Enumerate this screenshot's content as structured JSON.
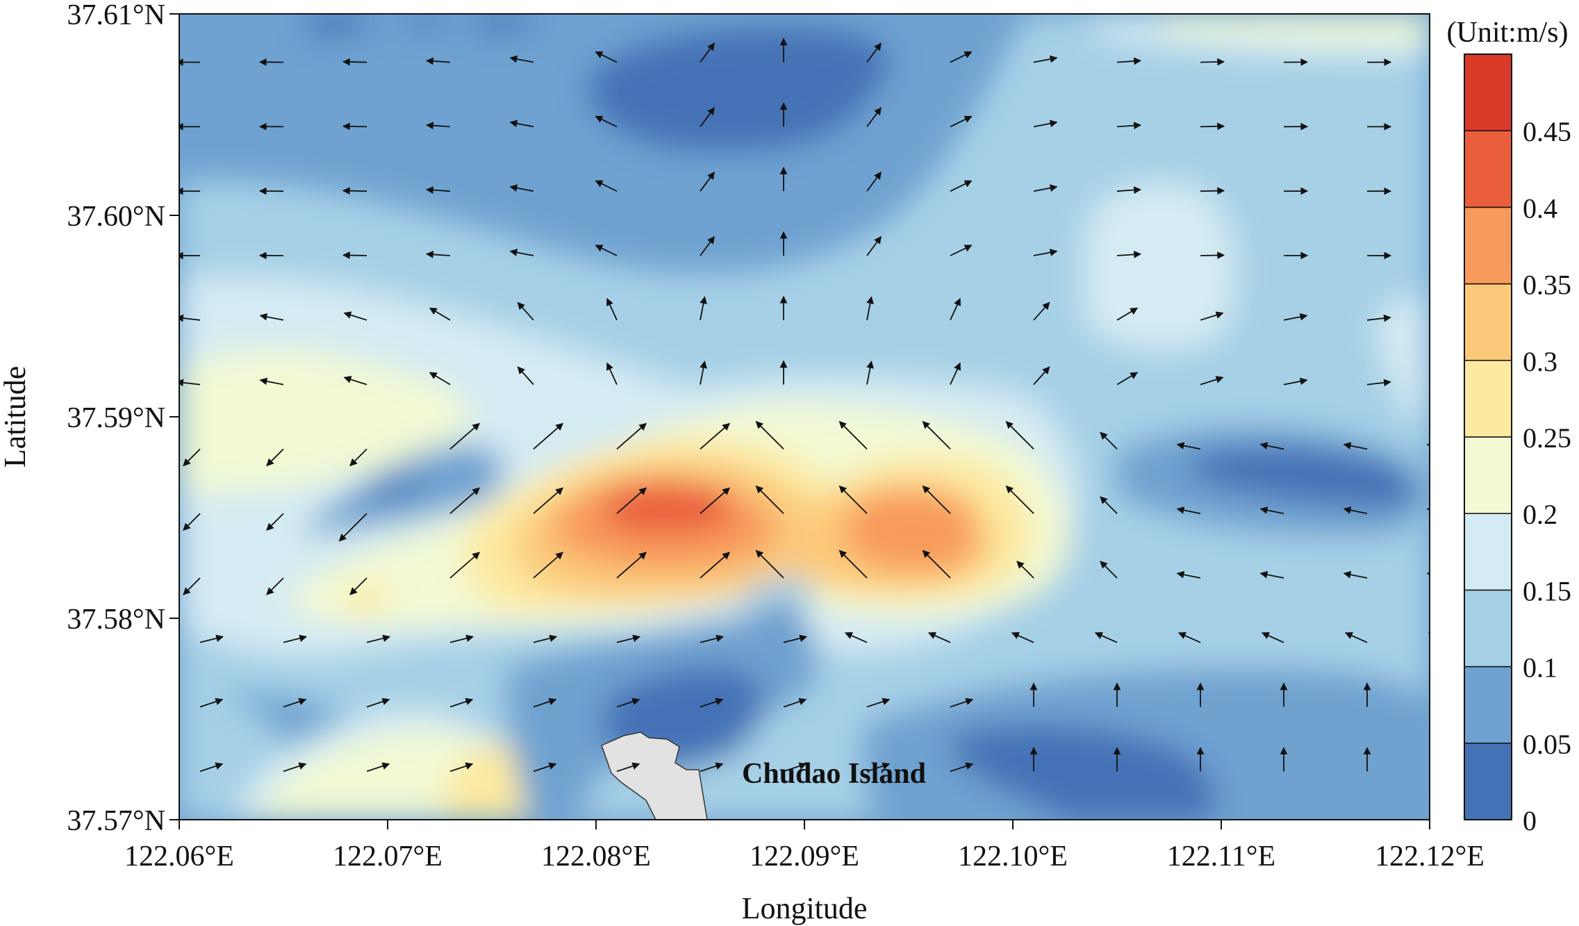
{
  "chart_data": {
    "type": "heatmap",
    "subtype": "filled-contour-with-vector-field",
    "xlabel": "Longitude",
    "ylabel": "Latitude",
    "xlim": [
      122.06,
      122.12
    ],
    "ylim": [
      37.57,
      37.61
    ],
    "x_ticks": [
      "122.06°E",
      "122.07°E",
      "122.08°E",
      "122.09°E",
      "122.10°E",
      "122.11°E",
      "122.12°E"
    ],
    "y_ticks": [
      "37.61°N",
      "37.60°N",
      "37.59°N",
      "37.58°N",
      "37.57°N"
    ],
    "colorbar": {
      "title": "(Unit:m/s)",
      "levels": [
        0,
        0.05,
        0.1,
        0.15,
        0.2,
        0.25,
        0.3,
        0.35,
        0.4,
        0.45,
        0.5
      ],
      "tick_labels": [
        "0",
        "0.05",
        "0.1",
        "0.15",
        "0.2",
        "0.25",
        "0.3",
        "0.35",
        "0.4",
        "0.45"
      ],
      "colors": [
        "#4472b6",
        "#6fa2d0",
        "#a6d0e6",
        "#d4ebf3",
        "#f2f9d3",
        "#fdeaa0",
        "#fbc97a",
        "#f89a5b",
        "#ea5e3c",
        "#d83a2a"
      ]
    },
    "speed_maxima": [
      {
        "lon": 122.0835,
        "lat": 37.5856,
        "speed": 0.44
      },
      {
        "lon": 122.0955,
        "lat": 37.5852,
        "speed": 0.39
      }
    ],
    "speed_minima": [
      {
        "lon": 122.0855,
        "lat": 37.6045,
        "speed": 0.03
      },
      {
        "lon": 122.113,
        "lat": 37.5865,
        "speed": 0.03
      },
      {
        "lon": 122.1,
        "lat": 37.5735,
        "speed": 0.03
      },
      {
        "lon": 122.0875,
        "lat": 37.5745,
        "speed": 0.03
      },
      {
        "lon": 122.0705,
        "lat": 37.5862,
        "speed": 0.03
      }
    ],
    "land": {
      "name": "Chudao Island",
      "fill": "#e2e2e2",
      "outline": [
        [
          122.081,
          37.5743
        ],
        [
          122.0828,
          37.5751
        ],
        [
          122.0841,
          37.5754
        ],
        [
          122.0848,
          37.5749
        ],
        [
          122.0862,
          37.5748
        ],
        [
          122.0872,
          37.5742
        ],
        [
          122.0869,
          37.5728
        ],
        [
          122.0878,
          37.5722
        ],
        [
          122.0888,
          37.5722
        ],
        [
          122.0895,
          37.57
        ],
        [
          122.0854,
          37.57
        ],
        [
          122.0846,
          37.5715
        ],
        [
          122.0826,
          37.5729
        ],
        [
          122.0818,
          37.5735
        ]
      ]
    },
    "current_vectors": {
      "lons": [
        122.061,
        122.065,
        122.069,
        122.073,
        122.077,
        122.081,
        122.085,
        122.089,
        122.093,
        122.097,
        122.101,
        122.105,
        122.109,
        122.113,
        122.117,
        122.121
      ],
      "lats": [
        37.6076,
        37.6044,
        37.6012,
        37.598,
        37.5948,
        37.5916,
        37.5884,
        37.5852,
        37.582,
        37.5788,
        37.5756,
        37.5724
      ],
      "note": "current direction and speed at each lon/lat grid point"
    }
  }
}
